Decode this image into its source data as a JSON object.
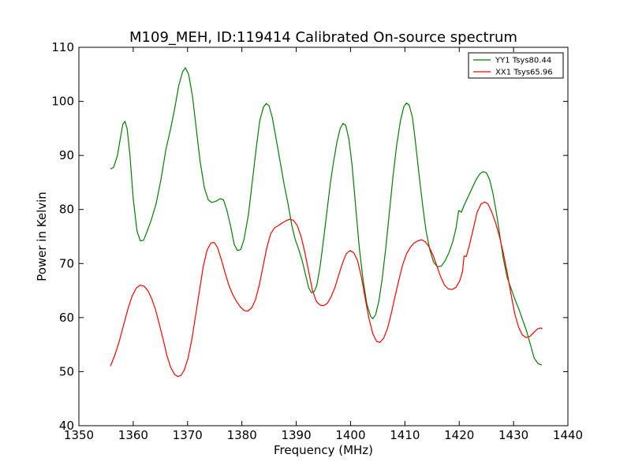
{
  "chart_data": {
    "type": "line",
    "title": "M109_MEH, ID:119414 Calibrated On-source spectrum",
    "xlabel": "Frequency (MHz)",
    "ylabel": "Power in Kelvin",
    "xlim": [
      1350,
      1440
    ],
    "ylim": [
      40,
      110
    ],
    "xticks": [
      1350,
      1360,
      1370,
      1380,
      1390,
      1400,
      1410,
      1420,
      1430,
      1440
    ],
    "yticks": [
      40,
      50,
      60,
      70,
      80,
      90,
      100,
      110
    ],
    "grid": false,
    "legend_position": "top-right",
    "series": [
      {
        "name": "YY1 Tsys80.44",
        "color": "#008000",
        "points": [
          [
            1355.8,
            87.5
          ],
          [
            1356.4,
            87.8
          ],
          [
            1357.1,
            90.0
          ],
          [
            1357.6,
            93.0
          ],
          [
            1358.1,
            95.8
          ],
          [
            1358.5,
            96.3
          ],
          [
            1358.9,
            94.8
          ],
          [
            1359.4,
            90.0
          ],
          [
            1360.0,
            82.0
          ],
          [
            1360.7,
            76.0
          ],
          [
            1361.3,
            74.2
          ],
          [
            1361.9,
            74.3
          ],
          [
            1362.5,
            75.8
          ],
          [
            1363.3,
            78.0
          ],
          [
            1364.2,
            81.0
          ],
          [
            1365.1,
            85.5
          ],
          [
            1366.0,
            91.0
          ],
          [
            1366.9,
            95.0
          ],
          [
            1367.6,
            98.5
          ],
          [
            1368.4,
            103.0
          ],
          [
            1369.1,
            105.5
          ],
          [
            1369.6,
            106.2
          ],
          [
            1370.2,
            105.0
          ],
          [
            1370.9,
            101.0
          ],
          [
            1371.6,
            95.0
          ],
          [
            1372.3,
            89.0
          ],
          [
            1373.1,
            84.0
          ],
          [
            1373.8,
            81.8
          ],
          [
            1374.4,
            81.3
          ],
          [
            1375.2,
            81.5
          ],
          [
            1376.0,
            82.0
          ],
          [
            1376.6,
            81.8
          ],
          [
            1377.2,
            80.0
          ],
          [
            1377.9,
            77.0
          ],
          [
            1378.6,
            73.5
          ],
          [
            1379.2,
            72.4
          ],
          [
            1379.8,
            72.6
          ],
          [
            1380.4,
            74.5
          ],
          [
            1381.2,
            79.0
          ],
          [
            1381.9,
            85.0
          ],
          [
            1382.6,
            91.0
          ],
          [
            1383.3,
            96.5
          ],
          [
            1384.0,
            99.0
          ],
          [
            1384.5,
            99.6
          ],
          [
            1385.0,
            99.2
          ],
          [
            1385.6,
            97.0
          ],
          [
            1386.4,
            92.5
          ],
          [
            1387.1,
            88.5
          ],
          [
            1387.8,
            84.5
          ],
          [
            1388.5,
            81.0
          ],
          [
            1389.2,
            77.0
          ],
          [
            1389.8,
            74.5
          ],
          [
            1390.5,
            72.5
          ],
          [
            1391.1,
            70.5
          ],
          [
            1391.7,
            68.0
          ],
          [
            1392.3,
            65.5
          ],
          [
            1392.8,
            64.6
          ],
          [
            1393.3,
            64.8
          ],
          [
            1393.8,
            66.0
          ],
          [
            1394.4,
            69.5
          ],
          [
            1395.1,
            75.0
          ],
          [
            1395.7,
            80.0
          ],
          [
            1396.3,
            85.0
          ],
          [
            1396.9,
            89.0
          ],
          [
            1397.5,
            92.5
          ],
          [
            1398.1,
            95.0
          ],
          [
            1398.6,
            95.9
          ],
          [
            1399.1,
            95.6
          ],
          [
            1399.7,
            93.0
          ],
          [
            1400.3,
            88.0
          ],
          [
            1400.9,
            81.0
          ],
          [
            1401.6,
            73.0
          ],
          [
            1402.3,
            67.0
          ],
          [
            1403.0,
            62.5
          ],
          [
            1403.7,
            60.2
          ],
          [
            1404.1,
            59.8
          ],
          [
            1404.6,
            60.5
          ],
          [
            1405.2,
            63.0
          ],
          [
            1405.8,
            67.0
          ],
          [
            1406.5,
            73.0
          ],
          [
            1407.2,
            80.0
          ],
          [
            1407.8,
            86.0
          ],
          [
            1408.5,
            92.0
          ],
          [
            1409.2,
            96.5
          ],
          [
            1409.8,
            99.0
          ],
          [
            1410.3,
            99.7
          ],
          [
            1410.8,
            99.3
          ],
          [
            1411.4,
            97.0
          ],
          [
            1412.0,
            92.0
          ],
          [
            1412.6,
            86.5
          ],
          [
            1413.3,
            80.5
          ],
          [
            1413.9,
            76.0
          ],
          [
            1414.6,
            72.5
          ],
          [
            1415.3,
            70.2
          ],
          [
            1416.0,
            69.4
          ],
          [
            1416.7,
            69.5
          ],
          [
            1417.4,
            70.5
          ],
          [
            1418.1,
            72.0
          ],
          [
            1418.8,
            74.0
          ],
          [
            1419.4,
            76.5
          ],
          [
            1419.9,
            79.8
          ],
          [
            1420.4,
            79.5
          ],
          [
            1421.0,
            81.0
          ],
          [
            1421.7,
            82.5
          ],
          [
            1422.4,
            84.0
          ],
          [
            1423.1,
            85.5
          ],
          [
            1423.8,
            86.6
          ],
          [
            1424.4,
            87.0
          ],
          [
            1425.0,
            86.8
          ],
          [
            1425.6,
            85.5
          ],
          [
            1426.2,
            83.0
          ],
          [
            1426.9,
            79.0
          ],
          [
            1427.5,
            75.0
          ],
          [
            1428.1,
            71.0
          ],
          [
            1428.8,
            67.5
          ],
          [
            1429.5,
            65.5
          ],
          [
            1430.2,
            63.5
          ],
          [
            1431.0,
            61.5
          ],
          [
            1431.7,
            59.5
          ],
          [
            1432.4,
            57.5
          ],
          [
            1433.1,
            55.0
          ],
          [
            1433.8,
            52.5
          ],
          [
            1434.5,
            51.5
          ],
          [
            1435.2,
            51.2
          ]
        ]
      },
      {
        "name": "XX1 Tsys65.96",
        "color": "#ff0000",
        "points": [
          [
            1355.8,
            51.0
          ],
          [
            1356.6,
            53.0
          ],
          [
            1357.4,
            55.5
          ],
          [
            1358.2,
            58.5
          ],
          [
            1359.0,
            61.5
          ],
          [
            1359.8,
            64.0
          ],
          [
            1360.6,
            65.5
          ],
          [
            1361.3,
            66.0
          ],
          [
            1362.0,
            65.8
          ],
          [
            1362.7,
            65.0
          ],
          [
            1363.4,
            63.5
          ],
          [
            1364.1,
            61.5
          ],
          [
            1364.8,
            58.8
          ],
          [
            1365.5,
            56.0
          ],
          [
            1366.2,
            53.0
          ],
          [
            1366.9,
            50.8
          ],
          [
            1367.6,
            49.5
          ],
          [
            1368.2,
            49.1
          ],
          [
            1368.8,
            49.3
          ],
          [
            1369.4,
            50.3
          ],
          [
            1370.1,
            52.5
          ],
          [
            1370.8,
            56.0
          ],
          [
            1371.5,
            60.5
          ],
          [
            1372.2,
            65.0
          ],
          [
            1372.9,
            69.5
          ],
          [
            1373.6,
            72.5
          ],
          [
            1374.3,
            73.8
          ],
          [
            1374.9,
            73.9
          ],
          [
            1375.5,
            73.0
          ],
          [
            1376.2,
            70.8
          ],
          [
            1376.9,
            68.3
          ],
          [
            1377.6,
            66.0
          ],
          [
            1378.3,
            64.3
          ],
          [
            1379.0,
            63.0
          ],
          [
            1379.7,
            62.0
          ],
          [
            1380.4,
            61.3
          ],
          [
            1381.1,
            61.2
          ],
          [
            1381.8,
            61.8
          ],
          [
            1382.5,
            63.3
          ],
          [
            1383.2,
            66.0
          ],
          [
            1383.9,
            69.5
          ],
          [
            1384.6,
            73.0
          ],
          [
            1385.3,
            75.5
          ],
          [
            1386.0,
            76.6
          ],
          [
            1386.7,
            77.0
          ],
          [
            1387.4,
            77.5
          ],
          [
            1388.1,
            77.9
          ],
          [
            1388.8,
            78.2
          ],
          [
            1389.5,
            78.0
          ],
          [
            1390.2,
            77.0
          ],
          [
            1390.9,
            75.0
          ],
          [
            1391.6,
            72.0
          ],
          [
            1392.3,
            68.5
          ],
          [
            1393.0,
            65.0
          ],
          [
            1393.7,
            63.0
          ],
          [
            1394.4,
            62.3
          ],
          [
            1395.0,
            62.2
          ],
          [
            1395.7,
            62.6
          ],
          [
            1396.4,
            63.8
          ],
          [
            1397.1,
            65.5
          ],
          [
            1397.8,
            67.8
          ],
          [
            1398.5,
            70.0
          ],
          [
            1399.2,
            71.8
          ],
          [
            1399.9,
            72.4
          ],
          [
            1400.6,
            72.0
          ],
          [
            1401.3,
            70.5
          ],
          [
            1402.0,
            67.5
          ],
          [
            1402.7,
            63.5
          ],
          [
            1403.4,
            59.8
          ],
          [
            1404.1,
            57.0
          ],
          [
            1404.8,
            55.6
          ],
          [
            1405.4,
            55.4
          ],
          [
            1406.1,
            56.2
          ],
          [
            1406.8,
            58.0
          ],
          [
            1407.5,
            60.8
          ],
          [
            1408.2,
            64.0
          ],
          [
            1408.9,
            67.0
          ],
          [
            1409.6,
            69.8
          ],
          [
            1410.3,
            71.8
          ],
          [
            1411.0,
            73.0
          ],
          [
            1411.7,
            73.8
          ],
          [
            1412.4,
            74.2
          ],
          [
            1413.1,
            74.4
          ],
          [
            1413.8,
            74.0
          ],
          [
            1414.5,
            73.0
          ],
          [
            1415.2,
            71.5
          ],
          [
            1415.9,
            69.5
          ],
          [
            1416.6,
            67.5
          ],
          [
            1417.3,
            66.0
          ],
          [
            1418.0,
            65.3
          ],
          [
            1418.7,
            65.2
          ],
          [
            1419.4,
            65.6
          ],
          [
            1420.1,
            66.8
          ],
          [
            1420.6,
            68.5
          ],
          [
            1420.9,
            71.4
          ],
          [
            1421.3,
            71.3
          ],
          [
            1421.9,
            73.5
          ],
          [
            1422.6,
            76.5
          ],
          [
            1423.3,
            79.5
          ],
          [
            1424.0,
            81.0
          ],
          [
            1424.7,
            81.4
          ],
          [
            1425.3,
            81.0
          ],
          [
            1426.0,
            79.5
          ],
          [
            1426.7,
            77.5
          ],
          [
            1427.4,
            75.0
          ],
          [
            1428.1,
            72.0
          ],
          [
            1428.8,
            68.5
          ],
          [
            1429.5,
            64.5
          ],
          [
            1430.2,
            60.8
          ],
          [
            1430.9,
            58.3
          ],
          [
            1431.6,
            56.8
          ],
          [
            1432.3,
            56.3
          ],
          [
            1433.0,
            56.5
          ],
          [
            1433.7,
            57.2
          ],
          [
            1434.4,
            57.9
          ],
          [
            1435.0,
            58.1
          ],
          [
            1435.3,
            57.9
          ]
        ]
      }
    ]
  }
}
